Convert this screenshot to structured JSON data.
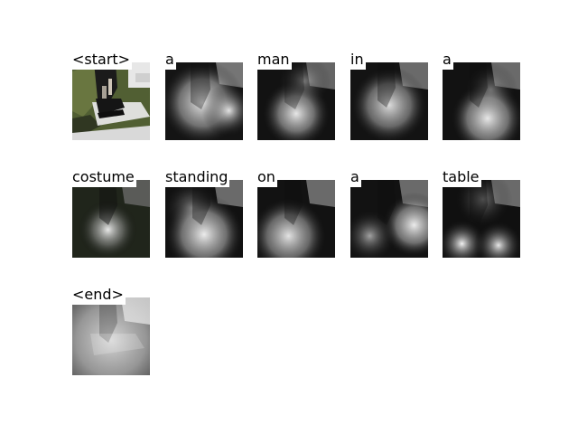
{
  "figure": {
    "tokens": [
      {
        "word": "<start>",
        "image": "original-photo"
      },
      {
        "word": "a",
        "image": "attention-map"
      },
      {
        "word": "man",
        "image": "attention-map"
      },
      {
        "word": "in",
        "image": "attention-map"
      },
      {
        "word": "a",
        "image": "attention-map"
      },
      {
        "word": "costume",
        "image": "attention-map"
      },
      {
        "word": "standing",
        "image": "attention-map"
      },
      {
        "word": "on",
        "image": "attention-map"
      },
      {
        "word": "a",
        "image": "attention-map"
      },
      {
        "word": "table",
        "image": "attention-map"
      },
      {
        "word": "<end>",
        "image": "attention-map"
      }
    ]
  }
}
